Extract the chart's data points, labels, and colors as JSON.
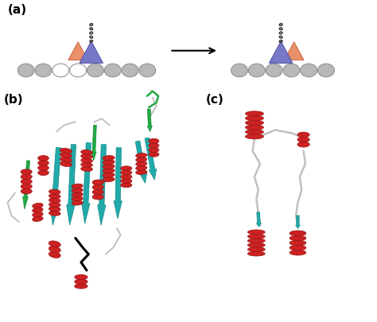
{
  "panel_a_label": "(a)",
  "panel_b_label": "(b)",
  "panel_c_label": "(c)",
  "bg_color": "#ffffff",
  "label_fontsize": 11,
  "label_fontweight": "bold",
  "tubulin_color": "#b8b8b8",
  "tubulin_edge": "#888888",
  "motor_domain_color": "#7878c8",
  "motor_domain_edge": "#5555aa",
  "neck_linker_color": "#e8906a",
  "neck_linker_edge": "#cc6644",
  "helix_red": "#cc2222",
  "helix_red_edge": "#991111",
  "helix_teal": "#22aaaa",
  "helix_teal_edge": "#118888",
  "helix_green": "#22aa44",
  "helix_green_edge": "#118833",
  "loop_gray": "#c0c0c0",
  "black": "#000000"
}
